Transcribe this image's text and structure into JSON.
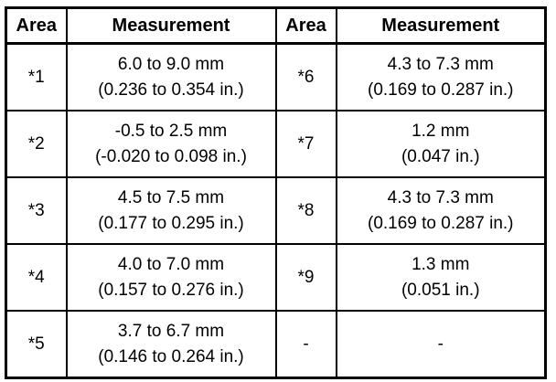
{
  "headers": {
    "area1": "Area",
    "measurement1": "Measurement",
    "area2": "Area",
    "measurement2": "Measurement"
  },
  "rows": [
    {
      "left_area": "*1",
      "left_mm": "6.0 to 9.0 mm",
      "left_in": "(0.236 to 0.354 in.)",
      "right_area": "*6",
      "right_mm": "4.3 to 7.3 mm",
      "right_in": "(0.169 to 0.287 in.)"
    },
    {
      "left_area": "*2",
      "left_mm": "-0.5 to 2.5 mm",
      "left_in": "(-0.020 to 0.098 in.)",
      "right_area": "*7",
      "right_mm": "1.2 mm",
      "right_in": "(0.047 in.)"
    },
    {
      "left_area": "*3",
      "left_mm": "4.5 to 7.5 mm",
      "left_in": "(0.177 to 0.295 in.)",
      "right_area": "*8",
      "right_mm": "4.3 to 7.3 mm",
      "right_in": "(0.169 to 0.287 in.)"
    },
    {
      "left_area": "*4",
      "left_mm": "4.0 to 7.0 mm",
      "left_in": "(0.157 to 0.276 in.)",
      "right_area": "*9",
      "right_mm": "1.3 mm",
      "right_in": "(0.051 in.)"
    },
    {
      "left_area": "*5",
      "left_mm": "3.7 to 6.7 mm",
      "left_in": "(0.146 to 0.264 in.)",
      "right_area": "-",
      "right_mm": "-",
      "right_in": ""
    }
  ]
}
